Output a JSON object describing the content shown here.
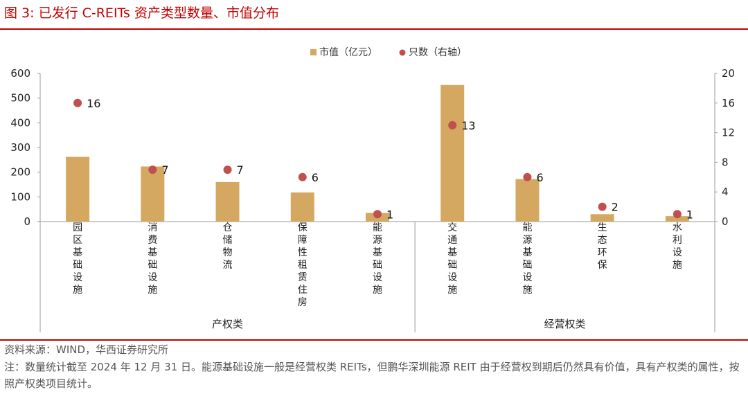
{
  "figure": {
    "title": "图 3:  已发行 C-REITs 资产类型数量、市值分布"
  },
  "footer": {
    "source": "资料来源：WIND，华西证券研究所",
    "note": "注：数量统计截至 2024 年 12 月 31 日。能源基础设施一般是经营权类 REITs，但鹏华深圳能源 REIT 由于经营权到期后仍然具有价值，具有产权类的属性，按照产权类项目统计。"
  },
  "colors": {
    "bar": "#d4a860",
    "dot": "#c0504d",
    "accent": "#c00000"
  },
  "chart_data": {
    "type": "bar",
    "title": "",
    "categories": [
      "园区基础设施",
      "消费基础设施",
      "仓储物流",
      "保障性租赁住房",
      "能源基础设施",
      "交通基础设施",
      "能源基础设施",
      "生态环保",
      "水利设施"
    ],
    "groups": [
      {
        "name": "产权类",
        "count": 5
      },
      {
        "name": "经营权类",
        "count": 4
      }
    ],
    "series": [
      {
        "name": "市值（亿元）",
        "type": "bar",
        "axis": "left",
        "values": [
          262,
          223,
          160,
          118,
          35,
          553,
          172,
          30,
          22
        ]
      },
      {
        "name": "只数（右轴）",
        "type": "scatter",
        "axis": "right",
        "values": [
          16,
          7,
          7,
          6,
          1,
          13,
          6,
          2,
          1
        ]
      }
    ],
    "legend": [
      "市值（亿元）",
      "只数（右轴）"
    ],
    "legend_position": "top-center",
    "ylim": [
      0,
      600
    ],
    "yticks": [
      "0",
      "100",
      "200",
      "300",
      "400",
      "500",
      "600"
    ],
    "y2lim": [
      0,
      20
    ],
    "y2ticks": [
      "0",
      "4",
      "8",
      "12",
      "16",
      "20"
    ],
    "grid": false
  }
}
